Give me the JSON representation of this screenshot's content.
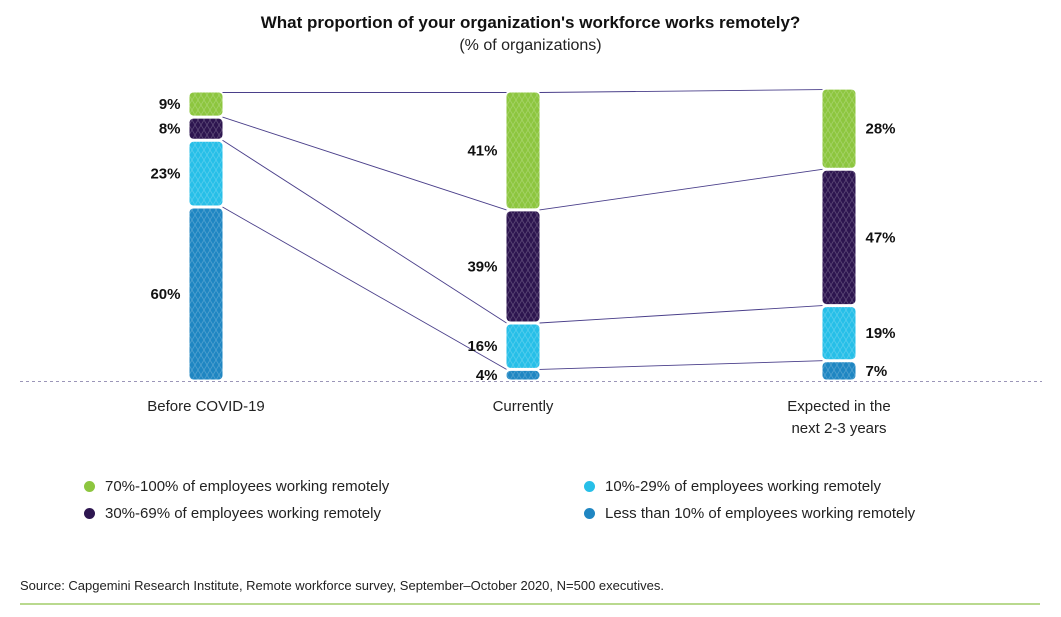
{
  "chart_data": {
    "type": "bar",
    "stacked": true,
    "title": "What proportion of your organization's workforce works remotely?",
    "subtitle": "(% of organizations)",
    "categories": [
      "Before COVID-19",
      "Currently",
      "Expected in the next 2-3 years"
    ],
    "category_lines": [
      [
        "Before COVID-19"
      ],
      [
        "Currently"
      ],
      [
        "Expected in the",
        "next 2-3 years"
      ]
    ],
    "series": [
      {
        "name": "Less than 10% of employees working remotely",
        "color": "#1f86c2",
        "values": [
          60,
          4,
          7
        ],
        "labels": [
          "60%",
          "4%",
          "7%"
        ]
      },
      {
        "name": "10%-29% of employees working remotely",
        "color": "#27bfe8",
        "values": [
          23,
          16,
          19
        ],
        "labels": [
          "23%",
          "16%",
          "19%"
        ]
      },
      {
        "name": "30%-69% of employees working remotely",
        "color": "#2e1650",
        "values": [
          8,
          39,
          47
        ],
        "labels": [
          "8%",
          "39%",
          "47%"
        ]
      },
      {
        "name": "70%-100% of employees working remotely",
        "color": "#8dc63f",
        "values": [
          9,
          41,
          28
        ],
        "labels": [
          "9%",
          "41%",
          "28%"
        ]
      }
    ],
    "label_side": [
      "left",
      "left",
      "right"
    ],
    "ylim": [
      0,
      100
    ],
    "grid": false,
    "legend": "bottom"
  },
  "legend": {
    "items": [
      {
        "label": "70%-100% of employees working remotely",
        "color": "#8dc63f"
      },
      {
        "label": "30%-69% of employees working remotely",
        "color": "#2e1650"
      },
      {
        "label": "10%-29% of employees working remotely",
        "color": "#27bfe8"
      },
      {
        "label": "Less than 10% of employees working remotely",
        "color": "#1f86c2"
      }
    ]
  },
  "source": "Source: Capgemini Research Institute, Remote workforce survey, September–October 2020, N=500 executives.",
  "colors": {
    "connector": "#4a3f8a",
    "baseline": "#9b96b8",
    "footer_rule": "#b9d98e"
  }
}
